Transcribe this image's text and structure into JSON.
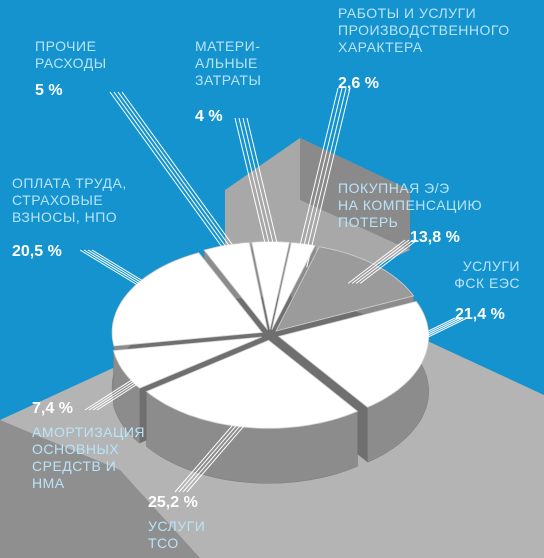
{
  "chart_data": {
    "type": "pie",
    "categories": [
      "ПРОЧИЕ\nРАСХОДЫ",
      "МАТЕРИ-\nАЛЬНЫЕ\nЗАТРАТЫ",
      "РАБОТЫ И УСЛУГИ\nПРОИЗВОДСТВЕННОГО\nХАРАКТЕРА",
      "ПОКУПНАЯ Э/Э\nНА КОМПЕНСАЦИЮ\nПОТЕРЬ",
      "УСЛУГИ\nФСК ЕЭС",
      "УСЛУГИ\nТСО",
      "АМОРТИЗАЦИЯ\nОСНОВНЫХ\nСРЕДСТВ И\nНМА",
      "ОПЛАТА ТРУДА,\nСТРАХОВЫЕ\nВЗНОСЫ, НПО"
    ],
    "values": [
      5,
      4,
      2.6,
      13.8,
      21.4,
      25.2,
      7.4,
      20.5
    ],
    "value_labels": [
      "5 %",
      "4 %",
      "2,6 %",
      "13,8 %",
      "21,4 %",
      "25,2 %",
      "7,4 %",
      "20,5 %"
    ],
    "colors": [
      "#ffffff",
      "#ffffff",
      "#ffffff",
      "#9b9b9b",
      "#ffffff",
      "#ffffff",
      "#ffffff",
      "#ffffff"
    ]
  }
}
